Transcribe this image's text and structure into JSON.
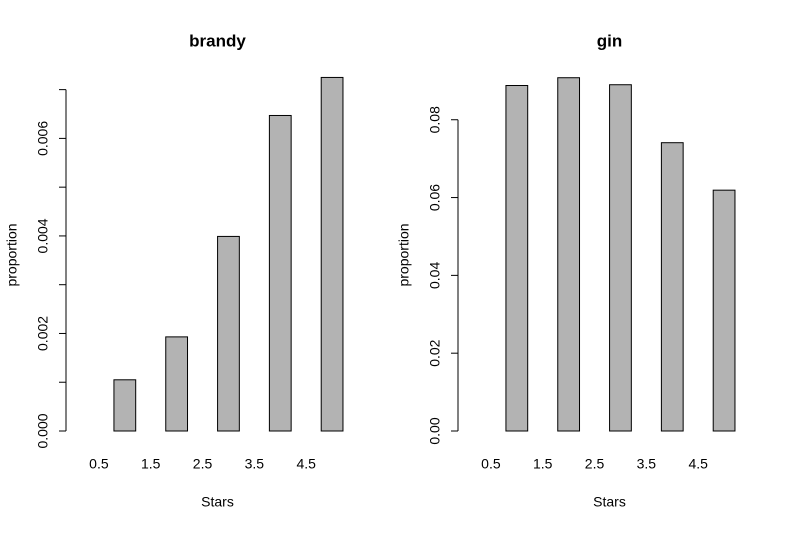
{
  "chart_data": [
    {
      "type": "bar",
      "title": "brandy",
      "xlabel": "Stars",
      "ylabel": "proportion",
      "x": [
        0.5,
        1,
        2,
        3,
        4,
        5
      ],
      "values": [
        0,
        0.00105,
        0.00193,
        0.00399,
        0.00647,
        0.00725
      ],
      "color": "#b3b3b3",
      "xlim": [
        0,
        5.5
      ],
      "xticks": [
        0.5,
        1.5,
        2.5,
        3.5,
        4.5
      ],
      "ylim": [
        0,
        0.0073
      ],
      "yticks": [
        {
          "value": 0,
          "label": "0.000"
        },
        {
          "value": 0.002,
          "label": "0.002"
        },
        {
          "value": 0.004,
          "label": "0.004"
        },
        {
          "value": 0.006,
          "label": "0.006"
        }
      ],
      "yminorticks": [
        0.001,
        0.003,
        0.005,
        0.007
      ]
    },
    {
      "type": "bar",
      "title": "gin",
      "xlabel": "Stars",
      "ylabel": "proportion",
      "x": [
        0.5,
        1,
        2,
        3,
        4,
        5
      ],
      "values": [
        0,
        0.0888,
        0.0908,
        0.089,
        0.0741,
        0.0619
      ],
      "color": "#b3b3b3",
      "xlim": [
        0,
        5.5
      ],
      "xticks": [
        0.5,
        1.5,
        2.5,
        3.5,
        4.5
      ],
      "ylim": [
        0,
        0.0915
      ],
      "yticks": [
        {
          "value": 0,
          "label": "0.00"
        },
        {
          "value": 0.02,
          "label": "0.02"
        },
        {
          "value": 0.04,
          "label": "0.04"
        },
        {
          "value": 0.06,
          "label": "0.06"
        },
        {
          "value": 0.08,
          "label": "0.08"
        }
      ],
      "yminorticks": []
    }
  ]
}
